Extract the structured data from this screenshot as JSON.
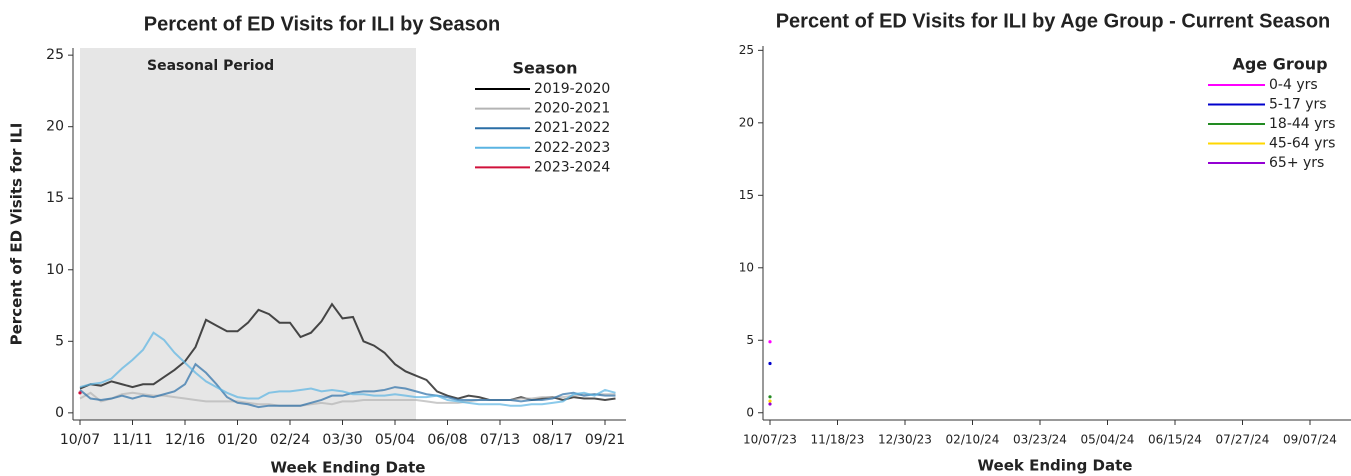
{
  "chart_data": [
    {
      "type": "line",
      "title": "Percent of ED Visits for ILI by Season",
      "x_label": "Week Ending Date",
      "y_label": "Percent of ED Visits for ILI",
      "categories": [
        "10/07",
        null,
        null,
        null,
        null,
        "11/11",
        null,
        null,
        null,
        null,
        "12/16",
        null,
        null,
        null,
        null,
        "01/20",
        null,
        null,
        null,
        null,
        "02/24",
        null,
        null,
        null,
        null,
        "03/30",
        null,
        null,
        null,
        null,
        "05/04",
        null,
        null,
        null,
        null,
        "06/08",
        null,
        null,
        null,
        null,
        "07/13",
        null,
        null,
        null,
        null,
        "08/17",
        null,
        null,
        null,
        null,
        "09/21",
        null
      ],
      "ylim": [
        -0.5,
        25.5
      ],
      "yticks": [
        0,
        5,
        10,
        15,
        20,
        25
      ],
      "shaded": {
        "label": "Seasonal Period",
        "start": 0,
        "end": 32
      },
      "legend": "top-right",
      "legend_title": "Season",
      "series": [
        {
          "name": "2019-2020",
          "color": "#000000",
          "values": [
            1.7,
            2.0,
            1.9,
            2.2,
            2.0,
            1.8,
            2.0,
            2.0,
            2.5,
            3.0,
            3.6,
            4.6,
            6.5,
            6.1,
            5.7,
            5.7,
            6.3,
            7.2,
            6.9,
            6.3,
            6.3,
            5.3,
            5.6,
            6.4,
            7.6,
            6.6,
            6.7,
            5.0,
            4.7,
            4.2,
            3.4,
            2.9,
            2.6,
            2.3,
            1.5,
            1.2,
            1.0,
            1.2,
            1.1,
            0.9,
            0.9,
            0.9,
            1.1,
            0.9,
            1.0,
            1.1,
            0.9,
            1.1,
            1.0,
            1.0,
            0.9,
            1.0
          ]
        },
        {
          "name": "2020-2021",
          "color": "#b4b4b4",
          "values": [
            1.0,
            1.4,
            0.8,
            1.0,
            1.3,
            1.4,
            1.3,
            1.2,
            1.2,
            1.1,
            1.0,
            0.9,
            0.8,
            0.8,
            0.8,
            0.8,
            0.7,
            0.6,
            0.6,
            0.5,
            0.5,
            0.5,
            0.6,
            0.7,
            0.6,
            0.8,
            0.8,
            0.9,
            0.9,
            0.9,
            0.9,
            0.9,
            0.9,
            0.8,
            0.7,
            0.7,
            0.7,
            0.8,
            0.9,
            0.9,
            0.9,
            0.9,
            1.0,
            1.0,
            1.1,
            1.1,
            1.1,
            1.2,
            1.3,
            1.3,
            1.3,
            1.3
          ]
        },
        {
          "name": "2021-2022",
          "color": "#2a6ea6",
          "values": [
            1.6,
            1.0,
            0.9,
            1.0,
            1.2,
            1.0,
            1.2,
            1.1,
            1.3,
            1.5,
            2.0,
            3.4,
            2.8,
            2.0,
            1.1,
            0.7,
            0.6,
            0.4,
            0.5,
            0.5,
            0.5,
            0.5,
            0.7,
            0.9,
            1.2,
            1.2,
            1.4,
            1.5,
            1.5,
            1.6,
            1.8,
            1.7,
            1.5,
            1.3,
            1.2,
            1.1,
            0.9,
            0.9,
            0.9,
            0.9,
            0.9,
            0.9,
            0.8,
            0.9,
            0.9,
            1.0,
            1.3,
            1.4,
            1.2,
            1.3,
            1.2,
            1.2
          ]
        },
        {
          "name": "2022-2023",
          "color": "#5ab4e2",
          "values": [
            1.8,
            2.0,
            2.1,
            2.4,
            3.1,
            3.7,
            4.4,
            5.6,
            5.1,
            4.2,
            3.5,
            2.8,
            2.2,
            1.8,
            1.4,
            1.1,
            1.0,
            1.0,
            1.4,
            1.5,
            1.5,
            1.6,
            1.7,
            1.5,
            1.6,
            1.5,
            1.3,
            1.3,
            1.2,
            1.2,
            1.3,
            1.2,
            1.1,
            1.1,
            1.2,
            0.9,
            0.8,
            0.7,
            0.6,
            0.6,
            0.6,
            0.5,
            0.5,
            0.6,
            0.6,
            0.7,
            0.8,
            1.3,
            1.4,
            1.2,
            1.6,
            1.4
          ]
        },
        {
          "name": "2023-2024",
          "color": "#d0103a",
          "values": [
            1.4,
            null,
            null,
            null,
            null,
            null,
            null,
            null,
            null,
            null,
            null,
            null,
            null,
            null,
            null,
            null,
            null,
            null,
            null,
            null,
            null,
            null,
            null,
            null,
            null,
            null,
            null,
            null,
            null,
            null,
            null,
            null,
            null,
            null,
            null,
            null,
            null,
            null,
            null,
            null,
            null,
            null,
            null,
            null,
            null,
            null,
            null,
            null,
            null,
            null,
            null,
            null
          ]
        }
      ]
    },
    {
      "type": "line",
      "title": "Percent of ED Visits for ILI by Age Group - Current Season",
      "x_label": "Week Ending Date",
      "categories": [
        "10/07/23",
        null,
        null,
        null,
        null,
        null,
        "11/18/23",
        null,
        null,
        null,
        null,
        null,
        "12/30/23",
        null,
        null,
        null,
        null,
        null,
        "02/10/24",
        null,
        null,
        null,
        null,
        null,
        "03/23/24",
        null,
        null,
        null,
        null,
        null,
        "05/04/24",
        null,
        null,
        null,
        null,
        null,
        "06/15/24",
        null,
        null,
        null,
        null,
        null,
        "07/27/24",
        null,
        null,
        null,
        null,
        null,
        "09/07/24",
        null,
        null,
        null
      ],
      "ylim": [
        -0.5,
        25.3
      ],
      "yticks": [
        0,
        5,
        10,
        15,
        20,
        25
      ],
      "legend": "top-right",
      "legend_title": "Age Group",
      "series": [
        {
          "name": "0-4 yrs",
          "color": "#ff00ff",
          "values": [
            4.9,
            null,
            null,
            null,
            null,
            null,
            null,
            null,
            null,
            null,
            null,
            null,
            null,
            null,
            null,
            null,
            null,
            null,
            null,
            null,
            null,
            null,
            null,
            null,
            null,
            null,
            null,
            null,
            null,
            null,
            null,
            null,
            null,
            null,
            null,
            null,
            null,
            null,
            null,
            null,
            null,
            null,
            null,
            null,
            null,
            null,
            null,
            null,
            null,
            null,
            null,
            null
          ]
        },
        {
          "name": "5-17 yrs",
          "color": "#0000cc",
          "values": [
            3.4,
            null,
            null,
            null,
            null,
            null,
            null,
            null,
            null,
            null,
            null,
            null,
            null,
            null,
            null,
            null,
            null,
            null,
            null,
            null,
            null,
            null,
            null,
            null,
            null,
            null,
            null,
            null,
            null,
            null,
            null,
            null,
            null,
            null,
            null,
            null,
            null,
            null,
            null,
            null,
            null,
            null,
            null,
            null,
            null,
            null,
            null,
            null,
            null,
            null,
            null,
            null
          ]
        },
        {
          "name": "18-44 yrs",
          "color": "#228b22",
          "values": [
            1.1,
            null,
            null,
            null,
            null,
            null,
            null,
            null,
            null,
            null,
            null,
            null,
            null,
            null,
            null,
            null,
            null,
            null,
            null,
            null,
            null,
            null,
            null,
            null,
            null,
            null,
            null,
            null,
            null,
            null,
            null,
            null,
            null,
            null,
            null,
            null,
            null,
            null,
            null,
            null,
            null,
            null,
            null,
            null,
            null,
            null,
            null,
            null,
            null,
            null,
            null,
            null
          ]
        },
        {
          "name": "45-64 yrs",
          "color": "#ffd700",
          "values": [
            0.8,
            null,
            null,
            null,
            null,
            null,
            null,
            null,
            null,
            null,
            null,
            null,
            null,
            null,
            null,
            null,
            null,
            null,
            null,
            null,
            null,
            null,
            null,
            null,
            null,
            null,
            null,
            null,
            null,
            null,
            null,
            null,
            null,
            null,
            null,
            null,
            null,
            null,
            null,
            null,
            null,
            null,
            null,
            null,
            null,
            null,
            null,
            null,
            null,
            null,
            null,
            null
          ]
        },
        {
          "name": "65+ yrs",
          "color": "#9400d3",
          "values": [
            0.6,
            null,
            null,
            null,
            null,
            null,
            null,
            null,
            null,
            null,
            null,
            null,
            null,
            null,
            null,
            null,
            null,
            null,
            null,
            null,
            null,
            null,
            null,
            null,
            null,
            null,
            null,
            null,
            null,
            null,
            null,
            null,
            null,
            null,
            null,
            null,
            null,
            null,
            null,
            null,
            null,
            null,
            null,
            null,
            null,
            null,
            null,
            null,
            null,
            null,
            null,
            null
          ]
        }
      ]
    }
  ]
}
